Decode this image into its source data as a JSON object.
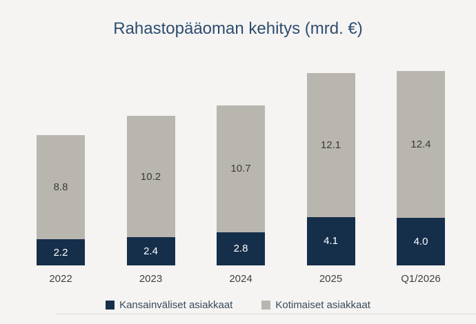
{
  "title": "Rahastopääoman kehitys (mrd. €)",
  "colors": {
    "background": "#f5f4f2",
    "international": "#152e4a",
    "domestic": "#b9b6af",
    "title_text": "#2d4d70",
    "label_on_gray": "#3b3b39",
    "label_on_navy": "#ffffff",
    "axis_line": "#dcdad5",
    "axis_text": "#3f3f3f",
    "legend_text": "#384a5c"
  },
  "chart_data": {
    "type": "bar",
    "stacked": true,
    "title": "Rahastopääoman kehitys (mrd. €)",
    "categories": [
      "2022",
      "2023",
      "2024",
      "2025",
      "Q1/2026"
    ],
    "series": [
      {
        "name": "Kansainväliset asiakkaat",
        "key": "international",
        "color": "#152e4a",
        "values": [
          2.2,
          2.4,
          2.8,
          4.1,
          4.0
        ],
        "labels": [
          "2.2",
          "2.4",
          "2.8",
          "4.1",
          "4.0"
        ]
      },
      {
        "name": "Kotimaiset asiakkaat",
        "key": "domestic",
        "color": "#b9b6af",
        "values": [
          8.8,
          10.2,
          10.7,
          12.1,
          12.4
        ],
        "labels": [
          "8.8",
          "10.2",
          "10.7",
          "12.1",
          "12.4"
        ]
      }
    ],
    "totals": [
      11.0,
      12.6,
      13.5,
      16.2,
      16.4
    ],
    "value_labels": true,
    "legend_position": "bottom",
    "xlabel": "",
    "ylabel": "",
    "ylim": [
      0,
      17
    ],
    "grid": false
  },
  "legend": {
    "items": [
      {
        "label": "Kansainväliset asiakkaat",
        "color": "#152e4a"
      },
      {
        "label": "Kotimaiset asiakkaat",
        "color": "#b9b6af"
      }
    ]
  }
}
